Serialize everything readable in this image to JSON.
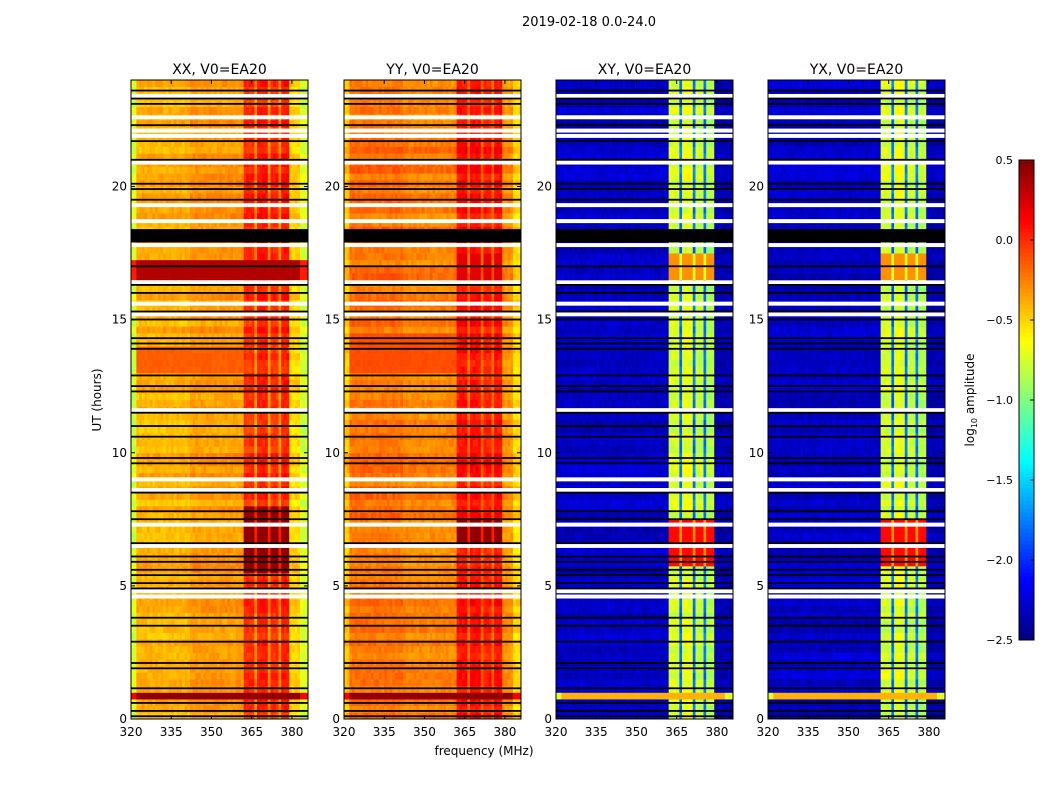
{
  "chart_data": {
    "type": "heatmap",
    "suptitle": "2019-02-18 0.0-24.0",
    "xlabel": "frequency (MHz)",
    "ylabel": "UT (hours)",
    "xlim": [
      320,
      386
    ],
    "ylim": [
      0,
      24
    ],
    "xticks": [
      320,
      335,
      350,
      365,
      380
    ],
    "yticks": [
      0,
      5,
      10,
      15,
      20
    ],
    "colorbar": {
      "label_main": "log",
      "label_sub": "10",
      "label_rest": " amplitude",
      "range": [
        -2.5,
        0.5
      ],
      "ticks": [
        "0.5",
        "0.0",
        "−0.5",
        "−1.0",
        "−1.5",
        "−2.0",
        "−2.5"
      ],
      "tick_values": [
        0.5,
        0.0,
        -0.5,
        -1.0,
        -1.5,
        -2.0,
        -2.5
      ],
      "colormap": "jet"
    },
    "panels": [
      {
        "title": "XX, V0=EA20",
        "freq_profile": [
          [
            320,
            322,
            -0.75
          ],
          [
            322,
            342,
            -0.4
          ],
          [
            342,
            362,
            -0.33
          ],
          [
            362,
            366,
            0.0
          ],
          [
            366,
            367,
            -0.3
          ],
          [
            367,
            371,
            0.05
          ],
          [
            371,
            372,
            -0.3
          ],
          [
            372,
            375,
            0.0
          ],
          [
            375,
            376,
            -0.3
          ],
          [
            376,
            379,
            0.05
          ],
          [
            379,
            383,
            -0.5
          ],
          [
            383,
            386,
            -0.75
          ]
        ],
        "elevated": [
          {
            "from": 0.7,
            "to": 1.1,
            "region": "all",
            "value": 0.45
          },
          {
            "from": 5.6,
            "to": 8.0,
            "region": "band",
            "value": 0.45
          },
          {
            "from": 16.5,
            "to": 17.3,
            "region": "all",
            "value": 0.35
          },
          {
            "from": 13.0,
            "to": 14.0,
            "region": "low",
            "value": -0.15
          }
        ],
        "black_rows": [
          0.1,
          0.3,
          0.6,
          1.15,
          1.9,
          2.1,
          2.9,
          3.5,
          3.8,
          4.9,
          5.1,
          5.4,
          5.6,
          5.9,
          6.1,
          6.6,
          7.5,
          7.8,
          8.5,
          9.6,
          9.8,
          10.6,
          11.0,
          11.5,
          12.3,
          12.5,
          12.9,
          13.9,
          14.1,
          14.3,
          15.0,
          15.3,
          16.0,
          16.3,
          17.0,
          19.5,
          19.9,
          20.1,
          21.0,
          21.7,
          22.3,
          23.1,
          23.3,
          23.6
        ],
        "white_rows": [
          4.6,
          4.8,
          6.5,
          7.3,
          8.6,
          9.0,
          11.6,
          15.2,
          15.6,
          16.4,
          17.8,
          18.7,
          19.3,
          20.9,
          21.9,
          22.1,
          22.6,
          23.4
        ],
        "black_band": [
          17.9,
          18.4
        ]
      },
      {
        "title": "YY, V0=EA20",
        "freq_profile": [
          [
            320,
            322,
            -0.45
          ],
          [
            322,
            342,
            -0.2
          ],
          [
            342,
            362,
            -0.25
          ],
          [
            362,
            366,
            0.1
          ],
          [
            366,
            367,
            -0.15
          ],
          [
            367,
            371,
            0.1
          ],
          [
            371,
            372,
            -0.15
          ],
          [
            372,
            375,
            0.05
          ],
          [
            375,
            376,
            -0.15
          ],
          [
            376,
            379,
            0.1
          ],
          [
            379,
            383,
            -0.3
          ],
          [
            383,
            386,
            -0.5
          ]
        ],
        "elevated": [
          {
            "from": 0.75,
            "to": 1.1,
            "region": "all",
            "value": 0.45
          },
          {
            "from": 6.5,
            "to": 7.5,
            "region": "band",
            "value": 0.45
          },
          {
            "from": 13.0,
            "to": 14.6,
            "region": "low",
            "value": -0.1
          },
          {
            "from": 16.5,
            "to": 17.5,
            "region": "band",
            "value": 0.2
          }
        ],
        "black_rows": [
          0.1,
          0.3,
          0.6,
          1.15,
          1.9,
          2.1,
          2.9,
          3.5,
          3.8,
          4.9,
          5.1,
          5.4,
          5.6,
          5.9,
          6.1,
          6.6,
          7.5,
          7.8,
          8.5,
          9.6,
          9.8,
          10.6,
          11.0,
          11.5,
          12.3,
          12.5,
          12.9,
          13.9,
          14.1,
          14.3,
          15.0,
          15.3,
          16.0,
          16.3,
          17.0,
          19.5,
          19.9,
          20.1,
          21.0,
          21.7,
          22.3,
          23.1,
          23.3,
          23.6
        ],
        "white_rows": [
          4.6,
          4.8,
          6.5,
          7.3,
          8.6,
          9.0,
          11.6,
          15.2,
          15.6,
          16.4,
          17.8,
          18.7,
          19.3,
          20.9,
          21.9,
          22.1,
          22.6,
          23.4
        ],
        "black_band": [
          17.9,
          18.4
        ]
      },
      {
        "title": "XY, V0=EA20",
        "freq_profile": [
          [
            320,
            362,
            -2.3
          ],
          [
            362,
            366,
            -0.75
          ],
          [
            366,
            367,
            -1.8
          ],
          [
            367,
            371,
            -0.7
          ],
          [
            371,
            372,
            -1.8
          ],
          [
            372,
            375,
            -0.8
          ],
          [
            375,
            376,
            -1.8
          ],
          [
            376,
            379,
            -0.85
          ],
          [
            379,
            386,
            -2.35
          ]
        ],
        "elevated": [
          {
            "from": 0.75,
            "to": 1.0,
            "region": "all",
            "value": -0.4
          },
          {
            "from": 5.7,
            "to": 7.5,
            "region": "band",
            "value": 0.1
          },
          {
            "from": 16.5,
            "to": 17.6,
            "region": "band",
            "value": -0.3
          }
        ],
        "black_rows": [
          0.1,
          0.3,
          0.6,
          1.15,
          1.9,
          2.1,
          2.9,
          3.5,
          3.8,
          4.9,
          5.1,
          5.4,
          5.6,
          5.9,
          6.1,
          6.6,
          7.5,
          7.8,
          8.5,
          9.6,
          9.8,
          10.6,
          11.0,
          11.5,
          12.3,
          12.5,
          12.9,
          13.9,
          14.1,
          14.3,
          15.0,
          15.3,
          16.0,
          16.3,
          17.0,
          19.5,
          19.9,
          20.1,
          21.0,
          21.7,
          22.3,
          23.1,
          23.3,
          23.6
        ],
        "white_rows": [
          4.6,
          4.8,
          6.5,
          7.3,
          8.6,
          9.0,
          11.6,
          15.2,
          15.6,
          16.4,
          17.8,
          18.7,
          19.3,
          20.9,
          21.9,
          22.1,
          22.6,
          23.4
        ],
        "black_band": [
          17.9,
          18.4
        ]
      },
      {
        "title": "YX, V0=EA20",
        "freq_profile": [
          [
            320,
            362,
            -2.3
          ],
          [
            362,
            366,
            -0.75
          ],
          [
            366,
            367,
            -1.8
          ],
          [
            367,
            371,
            -0.7
          ],
          [
            371,
            372,
            -1.8
          ],
          [
            372,
            375,
            -0.8
          ],
          [
            375,
            376,
            -1.8
          ],
          [
            376,
            379,
            -0.85
          ],
          [
            379,
            386,
            -2.35
          ]
        ],
        "elevated": [
          {
            "from": 0.75,
            "to": 1.0,
            "region": "all",
            "value": -0.4
          },
          {
            "from": 5.7,
            "to": 7.5,
            "region": "band",
            "value": 0.1
          },
          {
            "from": 16.5,
            "to": 17.6,
            "region": "band",
            "value": -0.3
          }
        ],
        "black_rows": [
          0.1,
          0.3,
          0.6,
          1.15,
          1.9,
          2.1,
          2.9,
          3.5,
          3.8,
          4.9,
          5.1,
          5.4,
          5.6,
          5.9,
          6.1,
          6.6,
          7.5,
          7.8,
          8.5,
          9.6,
          9.8,
          10.6,
          11.0,
          11.5,
          12.3,
          12.5,
          12.9,
          13.9,
          14.1,
          14.3,
          15.0,
          15.3,
          16.0,
          16.3,
          17.0,
          19.5,
          19.9,
          20.1,
          21.0,
          21.7,
          22.3,
          23.1,
          23.3,
          23.6
        ],
        "white_rows": [
          4.6,
          4.8,
          6.5,
          7.3,
          8.6,
          9.0,
          11.6,
          15.2,
          15.6,
          16.4,
          17.8,
          18.7,
          19.3,
          20.9,
          21.9,
          22.1,
          22.6,
          23.4
        ],
        "black_band": [
          17.9,
          18.4
        ]
      }
    ]
  }
}
